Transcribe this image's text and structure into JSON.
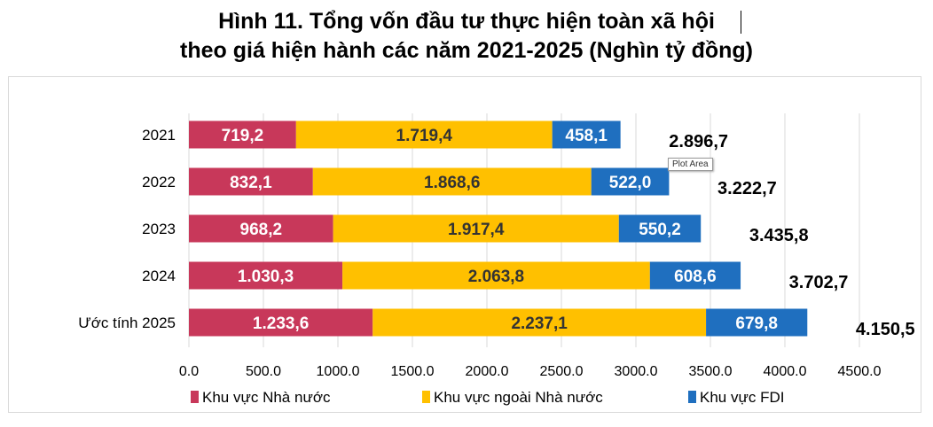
{
  "chart_data": {
    "type": "bar",
    "orientation": "horizontal",
    "stacked": true,
    "title": [
      "Hình 11. Tổng vốn đầu tư thực hiện toàn xã hội",
      "theo giá hiện hành các năm 2021-2025 (Nghìn tỷ đồng)"
    ],
    "categories": [
      "2021",
      "2022",
      "2023",
      "2024",
      "Ước tính 2025"
    ],
    "series": [
      {
        "name": "Khu vực Nhà nước",
        "color": "#C8385A",
        "values": [
          719.2,
          832.1,
          968.2,
          1030.3,
          1233.6
        ],
        "labels": [
          "719,2",
          "832,1",
          "968,2",
          "1.030,3",
          "1.233,6"
        ]
      },
      {
        "name": "Khu vực ngoài Nhà nước",
        "color": "#FFC000",
        "values": [
          1719.4,
          1868.6,
          1917.4,
          2063.8,
          2237.1
        ],
        "labels": [
          "1.719,4",
          "1.868,6",
          "1.917,4",
          "2.063,8",
          "2.237,1"
        ]
      },
      {
        "name": "Khu vực FDI",
        "color": "#1F6FBF",
        "values": [
          458.1,
          522.0,
          550.2,
          608.6,
          679.8
        ],
        "labels": [
          "458,1",
          "522,0",
          "550,2",
          "608,6",
          "679,8"
        ]
      }
    ],
    "totals": [
      2896.7,
      3222.7,
      3435.8,
      3702.7,
      4150.5
    ],
    "total_labels": [
      "2.896,7",
      "3.222,7",
      "3.435,8",
      "3.702,7",
      "4.150,5"
    ],
    "xlim": [
      0,
      4500
    ],
    "xticks": [
      "0.0",
      "500.0",
      "1000.0",
      "1500.0",
      "2000.0",
      "2500.0",
      "3000.0",
      "3500.0",
      "4000.0",
      "4500.0"
    ],
    "grid": true,
    "legend": "bottom"
  },
  "tooltip": "Plot Area"
}
